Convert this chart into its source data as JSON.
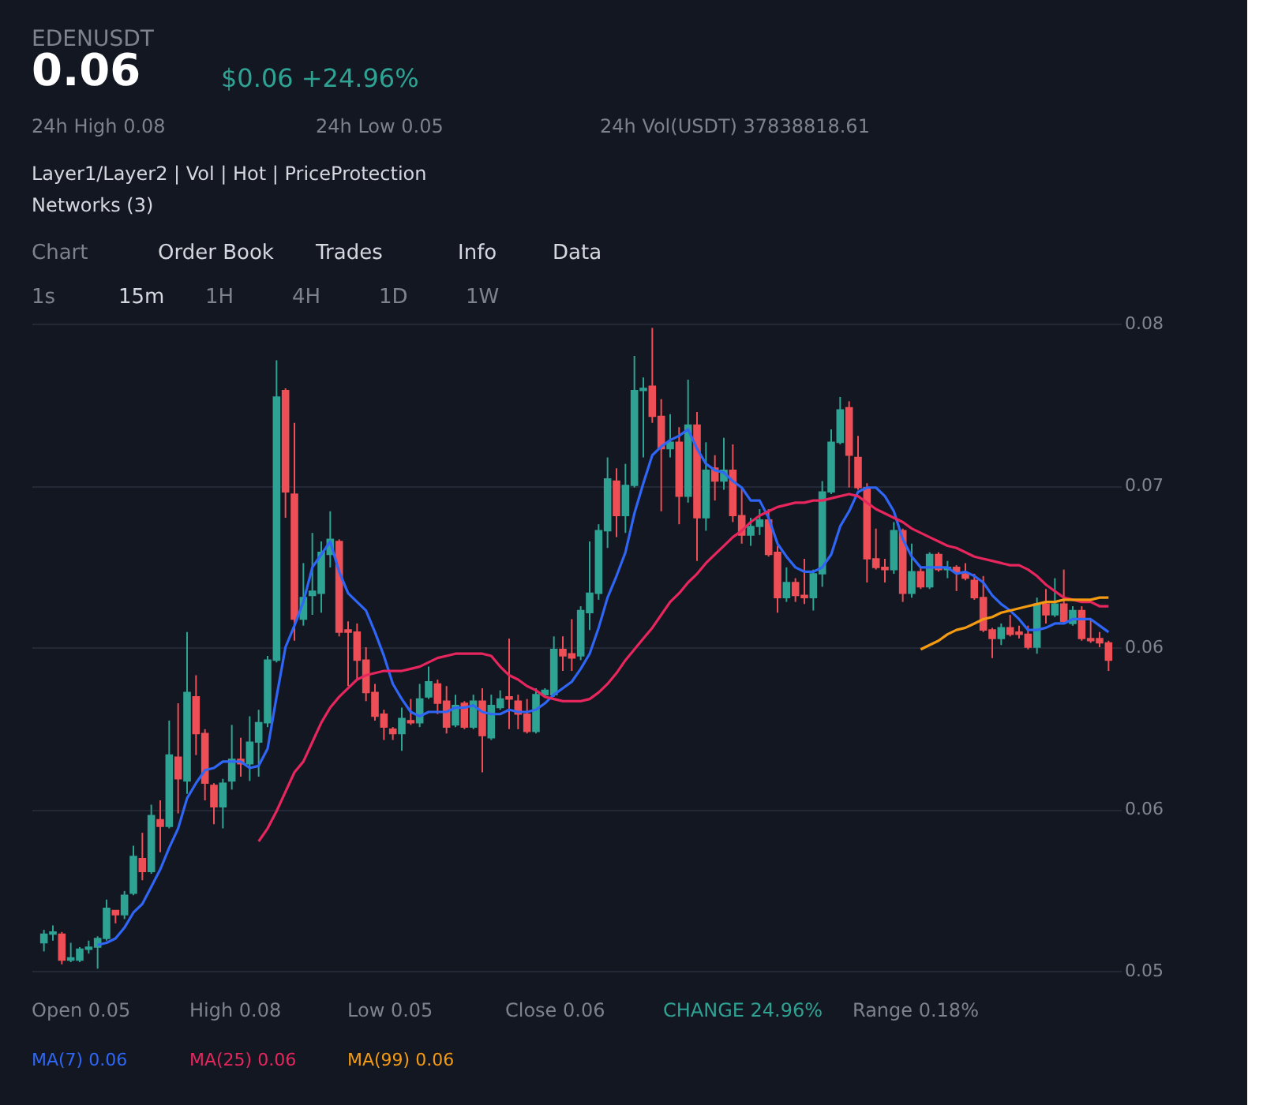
{
  "chart_data": {
    "type": "candlestick",
    "title": "EDENUSDT",
    "subtitle": "0.06",
    "categories": [
      null,
      null,
      null,
      null,
      null,
      null,
      null,
      null,
      null,
      null,
      null,
      null,
      null,
      null,
      null,
      null,
      null,
      null,
      null,
      null,
      null,
      null,
      null,
      null,
      null,
      null,
      null,
      null,
      null,
      null,
      null,
      null,
      null,
      null,
      null,
      null,
      null,
      null,
      null,
      null,
      null,
      null,
      null,
      null,
      null,
      null,
      null,
      null,
      null,
      null,
      null,
      null,
      null,
      null,
      null,
      null,
      null,
      null,
      null,
      null,
      null,
      null,
      null,
      null,
      null,
      null,
      null,
      null,
      null,
      null,
      null,
      null,
      null,
      null,
      null,
      null,
      null,
      null,
      null,
      null,
      null,
      null,
      null,
      null,
      null,
      null,
      null,
      null,
      null,
      null,
      null,
      null,
      null,
      null,
      null,
      null,
      null,
      null,
      null,
      null,
      null,
      null,
      null,
      null,
      null,
      null,
      null,
      null,
      null,
      null,
      null,
      null,
      null,
      null,
      null,
      null,
      null,
      null,
      null,
      null
    ],
    "ohlc": [
      [
        0.0513,
        0.0519,
        0.0509,
        0.0517
      ],
      [
        0.0517,
        0.0521,
        0.0514,
        0.0518
      ],
      [
        0.0517,
        0.0518,
        0.0503,
        0.0505
      ],
      [
        0.0505,
        0.0513,
        0.0504,
        0.0506
      ],
      [
        0.0505,
        0.0511,
        0.0504,
        0.051
      ],
      [
        0.051,
        0.0514,
        0.0508,
        0.0511
      ],
      [
        0.0511,
        0.0516,
        0.0501,
        0.0515
      ],
      [
        0.0515,
        0.0533,
        0.0514,
        0.0529
      ],
      [
        0.0528,
        0.0528,
        0.0522,
        0.0526
      ],
      [
        0.0526,
        0.0537,
        0.0524,
        0.0535
      ],
      [
        0.0536,
        0.0558,
        0.0535,
        0.0553
      ],
      [
        0.0552,
        0.0564,
        0.0542,
        0.0546
      ],
      [
        0.0546,
        0.0577,
        0.0545,
        0.0572
      ],
      [
        0.057,
        0.0579,
        0.0555,
        0.0567
      ],
      [
        0.0567,
        0.0616,
        0.0566,
        0.06
      ],
      [
        0.0599,
        0.0624,
        0.0573,
        0.0589
      ],
      [
        0.0588,
        0.0657,
        0.0582,
        0.0629
      ],
      [
        0.0627,
        0.0637,
        0.06,
        0.061
      ],
      [
        0.061,
        0.0612,
        0.0579,
        0.0587
      ],
      [
        0.0586,
        0.0587,
        0.0568,
        0.0576
      ],
      [
        0.0576,
        0.0589,
        0.0566,
        0.0587
      ],
      [
        0.0588,
        0.0614,
        0.0584,
        0.0598
      ],
      [
        0.0598,
        0.0608,
        0.059,
        0.0596
      ],
      [
        0.0596,
        0.0618,
        0.0588,
        0.0606
      ],
      [
        0.0606,
        0.0621,
        0.059,
        0.0615
      ],
      [
        0.0615,
        0.0646,
        0.0613,
        0.0644
      ],
      [
        0.0644,
        0.0783,
        0.0643,
        0.0766
      ],
      [
        0.0769,
        0.077,
        0.071,
        0.0722
      ],
      [
        0.0721,
        0.0754,
        0.0653,
        0.0663
      ],
      [
        0.0663,
        0.0689,
        0.066,
        0.0673
      ],
      [
        0.0674,
        0.0703,
        0.0665,
        0.0676
      ],
      [
        0.0675,
        0.0699,
        0.0666,
        0.0694
      ],
      [
        0.0693,
        0.0713,
        0.0687,
        0.07
      ],
      [
        0.0699,
        0.07,
        0.0655,
        0.0657
      ],
      [
        0.0658,
        0.0662,
        0.0632,
        0.0657
      ],
      [
        0.0657,
        0.0661,
        0.0635,
        0.0644
      ],
      [
        0.0644,
        0.065,
        0.0625,
        0.0629
      ],
      [
        0.0629,
        0.0633,
        0.0616,
        0.0618
      ],
      [
        0.0619,
        0.0621,
        0.0607,
        0.0613
      ],
      [
        0.0612,
        0.0613,
        0.0607,
        0.061
      ],
      [
        0.061,
        0.0622,
        0.0602,
        0.0617
      ],
      [
        0.0616,
        0.0626,
        0.0614,
        0.0615
      ],
      [
        0.0615,
        0.0633,
        0.0613,
        0.0626
      ],
      [
        0.0627,
        0.0641,
        0.0626,
        0.0634
      ],
      [
        0.0633,
        0.0635,
        0.0619,
        0.0624
      ],
      [
        0.0625,
        0.0632,
        0.061,
        0.0613
      ],
      [
        0.0614,
        0.0628,
        0.0613,
        0.0623
      ],
      [
        0.0624,
        0.0625,
        0.0612,
        0.0613
      ],
      [
        0.0613,
        0.0628,
        0.0612,
        0.0625
      ],
      [
        0.0625,
        0.0631,
        0.0592,
        0.0609
      ],
      [
        0.0608,
        0.0628,
        0.0607,
        0.0623
      ],
      [
        0.0622,
        0.063,
        0.0621,
        0.0626
      ],
      [
        0.0627,
        0.0654,
        0.0612,
        0.0626
      ],
      [
        0.0625,
        0.0628,
        0.0612,
        0.0619
      ],
      [
        0.0619,
        0.0626,
        0.061,
        0.0611
      ],
      [
        0.0611,
        0.0631,
        0.061,
        0.0628
      ],
      [
        0.0628,
        0.0631,
        0.0627,
        0.063
      ],
      [
        0.0628,
        0.0655,
        0.0627,
        0.0649
      ],
      [
        0.0649,
        0.0655,
        0.0639,
        0.0646
      ],
      [
        0.0647,
        0.0663,
        0.0639,
        0.0645
      ],
      [
        0.0646,
        0.0669,
        0.0644,
        0.0667
      ],
      [
        0.0666,
        0.0699,
        0.0658,
        0.0675
      ],
      [
        0.0675,
        0.0707,
        0.0672,
        0.0704
      ],
      [
        0.0704,
        0.0738,
        0.0696,
        0.0728
      ],
      [
        0.0727,
        0.0733,
        0.0701,
        0.0711
      ],
      [
        0.0711,
        0.0735,
        0.0703,
        0.0725
      ],
      [
        0.0725,
        0.0785,
        0.0724,
        0.0769
      ],
      [
        0.0769,
        0.0775,
        0.0738,
        0.077
      ],
      [
        0.0771,
        0.0798,
        0.0754,
        0.0757
      ],
      [
        0.0757,
        0.0765,
        0.0713,
        0.0742
      ],
      [
        0.0742,
        0.0758,
        0.0738,
        0.0745
      ],
      [
        0.0745,
        0.0752,
        0.0707,
        0.072
      ],
      [
        0.072,
        0.0774,
        0.0717,
        0.0753
      ],
      [
        0.0753,
        0.0759,
        0.069,
        0.071
      ],
      [
        0.071,
        0.0745,
        0.0704,
        0.0732
      ],
      [
        0.0733,
        0.0739,
        0.0718,
        0.0727
      ],
      [
        0.0727,
        0.0747,
        0.0723,
        0.0732
      ],
      [
        0.0732,
        0.0744,
        0.0708,
        0.0711
      ],
      [
        0.0711,
        0.0724,
        0.0698,
        0.0702
      ],
      [
        0.0702,
        0.071,
        0.0697,
        0.0706
      ],
      [
        0.0706,
        0.0714,
        0.0702,
        0.0709
      ],
      [
        0.0709,
        0.0714,
        0.0692,
        0.0693
      ],
      [
        0.0694,
        0.0697,
        0.0666,
        0.0673
      ],
      [
        0.0673,
        0.0687,
        0.0671,
        0.068
      ],
      [
        0.068,
        0.0682,
        0.0671,
        0.0674
      ],
      [
        0.0674,
        0.0691,
        0.067,
        0.0673
      ],
      [
        0.0673,
        0.0686,
        0.0667,
        0.0684
      ],
      [
        0.0684,
        0.0727,
        0.0678,
        0.0722
      ],
      [
        0.0722,
        0.0751,
        0.0721,
        0.0745
      ],
      [
        0.0745,
        0.0766,
        0.0744,
        0.076
      ],
      [
        0.0761,
        0.0764,
        0.0724,
        0.0739
      ],
      [
        0.0738,
        0.0748,
        0.0723,
        0.0724
      ],
      [
        0.0724,
        0.0726,
        0.068,
        0.0691
      ],
      [
        0.0691,
        0.0705,
        0.0686,
        0.0687
      ],
      [
        0.0687,
        0.0691,
        0.068,
        0.0686
      ],
      [
        0.0686,
        0.0708,
        0.0684,
        0.0704
      ],
      [
        0.0704,
        0.0705,
        0.0671,
        0.0675
      ],
      [
        0.0675,
        0.0698,
        0.0673,
        0.0685
      ],
      [
        0.0685,
        0.0687,
        0.0677,
        0.0678
      ],
      [
        0.0678,
        0.0694,
        0.0677,
        0.0693
      ],
      [
        0.0693,
        0.0694,
        0.0685,
        0.0686
      ],
      [
        0.0686,
        0.069,
        0.0682,
        0.0687
      ],
      [
        0.0687,
        0.0688,
        0.0676,
        0.0685
      ],
      [
        0.0684,
        0.0689,
        0.0681,
        0.0682
      ],
      [
        0.0681,
        0.0684,
        0.0672,
        0.0673
      ],
      [
        0.0673,
        0.0683,
        0.0657,
        0.0658
      ],
      [
        0.0658,
        0.0659,
        0.0645,
        0.0654
      ],
      [
        0.0654,
        0.0661,
        0.0651,
        0.0659
      ],
      [
        0.0659,
        0.0665,
        0.0655,
        0.0656
      ],
      [
        0.0657,
        0.066,
        0.0654,
        0.0656
      ],
      [
        0.0656,
        0.066,
        0.0649,
        0.065
      ],
      [
        0.065,
        0.0673,
        0.0647,
        0.067
      ],
      [
        0.067,
        0.0677,
        0.0661,
        0.0665
      ],
      [
        0.0665,
        0.0682,
        0.0664,
        0.067
      ],
      [
        0.067,
        0.0686,
        0.0661,
        0.0662
      ],
      [
        0.0661,
        0.0669,
        0.066,
        0.0667
      ],
      [
        0.0667,
        0.0669,
        0.0653,
        0.0654
      ],
      [
        0.0654,
        0.0663,
        0.0652,
        0.0653
      ],
      [
        0.0654,
        0.0657,
        0.065,
        0.0652
      ],
      [
        0.0652,
        0.0653,
        0.0639,
        0.0644
      ]
    ],
    "colors": [
      "#2ea394",
      "#2ea394",
      "#ee4f56",
      "#2ea394",
      "#2ea394",
      "#2ea394",
      "#2ea394",
      "#2ea394",
      "#ee4f56",
      "#2ea394",
      "#2ea394",
      "#ee4f56",
      "#2ea394",
      "#ee4f56",
      "#2ea394",
      "#ee4f56",
      "#2ea394",
      "#ee4f56",
      "#ee4f56",
      "#ee4f56",
      "#2ea394",
      "#2ea394",
      "#ee4f56",
      "#2ea394",
      "#2ea394",
      "#2ea394",
      "#2ea394",
      "#ee4f56",
      "#ee4f56",
      "#2ea394",
      "#2ea394",
      "#2ea394",
      "#2ea394",
      "#ee4f56",
      "#ee4f56",
      "#ee4f56",
      "#ee4f56",
      "#ee4f56",
      "#ee4f56",
      "#ee4f56",
      "#2ea394",
      "#ee4f56",
      "#2ea394",
      "#2ea394",
      "#ee4f56",
      "#ee4f56",
      "#2ea394",
      "#ee4f56",
      "#2ea394",
      "#ee4f56",
      "#2ea394",
      "#2ea394",
      "#ee4f56",
      "#ee4f56",
      "#ee4f56",
      "#2ea394",
      "#2ea394",
      "#2ea394",
      "#ee4f56",
      "#ee4f56",
      "#2ea394",
      "#2ea394",
      "#2ea394",
      "#2ea394",
      "#ee4f56",
      "#2ea394",
      "#2ea394",
      "#2ea394",
      "#ee4f56",
      "#ee4f56",
      "#2ea394",
      "#ee4f56",
      "#2ea394",
      "#ee4f56",
      "#2ea394",
      "#ee4f56",
      "#2ea394",
      "#ee4f56",
      "#ee4f56",
      "#2ea394",
      "#2ea394",
      "#ee4f56",
      "#ee4f56",
      "#2ea394",
      "#ee4f56",
      "#ee4f56",
      "#2ea394",
      "#2ea394",
      "#2ea394",
      "#2ea394",
      "#ee4f56",
      "#ee4f56",
      "#ee4f56",
      "#ee4f56",
      "#ee4f56",
      "#2ea394",
      "#ee4f56",
      "#2ea394",
      "#ee4f56",
      "#2ea394",
      "#ee4f56",
      "#2ea394",
      "#ee4f56",
      "#ee4f56",
      "#ee4f56",
      "#ee4f56",
      "#ee4f56",
      "#2ea394",
      "#ee4f56",
      "#ee4f56",
      "#ee4f56",
      "#2ea394",
      "#ee4f56",
      "#2ea394",
      "#ee4f56",
      "#2ea394",
      "#ee4f56",
      "#ee4f56",
      "#ee4f56",
      "#ee4f56"
    ],
    "series": [
      {
        "name": "MA(7) 0.06",
        "type": "line",
        "color": "#2f66f5",
        "values": [
          null,
          null,
          null,
          null,
          null,
          null,
          0.0512,
          0.0513,
          0.0515,
          0.052,
          0.0527,
          0.0531,
          0.0539,
          0.0547,
          0.0557,
          0.0566,
          0.058,
          0.0587,
          0.0593,
          0.0594,
          0.0597,
          0.0597,
          0.0597,
          0.0594,
          0.0595,
          0.0603,
          0.0627,
          0.065,
          0.066,
          0.0671,
          0.0687,
          0.0693,
          0.0699,
          0.0685,
          0.0675,
          0.0671,
          0.0667,
          0.0657,
          0.0646,
          0.0633,
          0.0626,
          0.062,
          0.0618,
          0.062,
          0.062,
          0.062,
          0.0622,
          0.0622,
          0.0623,
          0.062,
          0.0619,
          0.0619,
          0.0621,
          0.062,
          0.062,
          0.0621,
          0.0624,
          0.0628,
          0.0631,
          0.0634,
          0.064,
          0.0647,
          0.0659,
          0.0673,
          0.0683,
          0.0694,
          0.0712,
          0.0726,
          0.0739,
          0.0743,
          0.0746,
          0.0748,
          0.0751,
          0.0742,
          0.0735,
          0.0732,
          0.0731,
          0.0727,
          0.0724,
          0.0718,
          0.0718,
          0.071,
          0.0698,
          0.0692,
          0.0687,
          0.0685,
          0.0685,
          0.0687,
          0.0693,
          0.0706,
          0.0713,
          0.0722,
          0.0724,
          0.0724,
          0.072,
          0.0713,
          0.07,
          0.0692,
          0.0687,
          0.0687,
          0.0687,
          0.0687,
          0.0684,
          0.0685,
          0.0683,
          0.068,
          0.0674,
          0.067,
          0.0667,
          0.0663,
          0.0658,
          0.0658,
          0.0659,
          0.0661,
          0.0661,
          0.0663,
          0.0663,
          0.0663,
          0.066,
          0.0657
        ]
      },
      {
        "name": "MA(25) 0.06",
        "type": "line",
        "color": "#e8265e",
        "values": [
          null,
          null,
          null,
          null,
          null,
          null,
          null,
          null,
          null,
          null,
          null,
          null,
          null,
          null,
          null,
          null,
          null,
          null,
          null,
          null,
          null,
          null,
          null,
          null,
          0.056,
          0.0566,
          0.0574,
          0.0583,
          0.0592,
          0.0597,
          0.0606,
          0.0615,
          0.0622,
          0.0627,
          0.0631,
          0.0635,
          0.0637,
          0.0638,
          0.0639,
          0.0639,
          0.0639,
          0.064,
          0.0641,
          0.0643,
          0.0645,
          0.0646,
          0.0647,
          0.0647,
          0.0647,
          0.0647,
          0.0646,
          0.0641,
          0.0637,
          0.0635,
          0.0632,
          0.063,
          0.0627,
          0.0626,
          0.0625,
          0.0625,
          0.0625,
          0.0626,
          0.0629,
          0.0633,
          0.0638,
          0.0644,
          0.0649,
          0.0654,
          0.0659,
          0.0665,
          0.0671,
          0.0675,
          0.068,
          0.0684,
          0.0689,
          0.0693,
          0.0697,
          0.0701,
          0.0704,
          0.0708,
          0.0711,
          0.0713,
          0.0715,
          0.0716,
          0.0717,
          0.0717,
          0.0718,
          0.0718,
          0.0719,
          0.072,
          0.0721,
          0.072,
          0.0717,
          0.0714,
          0.0712,
          0.071,
          0.0708,
          0.0705,
          0.0703,
          0.0701,
          0.0699,
          0.0697,
          0.0696,
          0.0694,
          0.0692,
          0.0691,
          0.069,
          0.0689,
          0.0688,
          0.0688,
          0.0686,
          0.0683,
          0.0679,
          0.0676,
          0.0673,
          0.0672,
          0.0671,
          0.0671,
          0.0669,
          0.0669
        ]
      },
      {
        "name": "MA(99) 0.06",
        "type": "line",
        "color": "#f59b12",
        "values": [
          null,
          null,
          null,
          null,
          null,
          null,
          null,
          null,
          null,
          null,
          null,
          null,
          null,
          null,
          null,
          null,
          null,
          null,
          null,
          null,
          null,
          null,
          null,
          null,
          null,
          null,
          null,
          null,
          null,
          null,
          null,
          null,
          null,
          null,
          null,
          null,
          null,
          null,
          null,
          null,
          null,
          null,
          null,
          null,
          null,
          null,
          null,
          null,
          null,
          null,
          null,
          null,
          null,
          null,
          null,
          null,
          null,
          null,
          null,
          null,
          null,
          null,
          null,
          null,
          null,
          null,
          null,
          null,
          null,
          null,
          null,
          null,
          null,
          null,
          null,
          null,
          null,
          null,
          null,
          null,
          null,
          null,
          null,
          null,
          null,
          null,
          null,
          null,
          null,
          null,
          null,
          null,
          null,
          null,
          null,
          null,
          null,
          null,
          0.0649,
          0.0651,
          0.0653,
          0.0656,
          0.0658,
          0.0659,
          0.0661,
          0.0663,
          0.0664,
          0.0666,
          0.0667,
          0.0668,
          0.0669,
          0.067,
          0.0671,
          0.0671,
          0.0672,
          0.0672,
          0.0672,
          0.0672,
          0.0673,
          0.0673
        ]
      }
    ],
    "ylim": [
      0.05,
      0.08
    ],
    "yticks": [
      0.05,
      {
        "value": 0.0575,
        "label": "0.06"
      },
      {
        "value": 0.065,
        "label": "0.06"
      },
      {
        "value": 0.0725,
        "label": "0.07"
      },
      0.08
    ],
    "grid": "y",
    "legend": "bottom",
    "tick_labels": "y",
    "annotations": [
      "$0.06 +24.96%",
      "24h High 0.08",
      "24h Low 0.05",
      "24h Vol(USDT) 37838818.61",
      "Layer1/Layer2 | Vol | Hot | PriceProtection",
      "Networks (3)",
      "Chart",
      "Order Book",
      "Trades",
      "Info",
      "Data",
      "1s",
      "15m",
      "1H",
      "4H",
      "1D",
      "1W",
      "Open 0.05",
      "High 0.08",
      "Low 0.05",
      "Close 0.06",
      "CHANGE 24.96%",
      "Range 0.18%"
    ]
  }
}
